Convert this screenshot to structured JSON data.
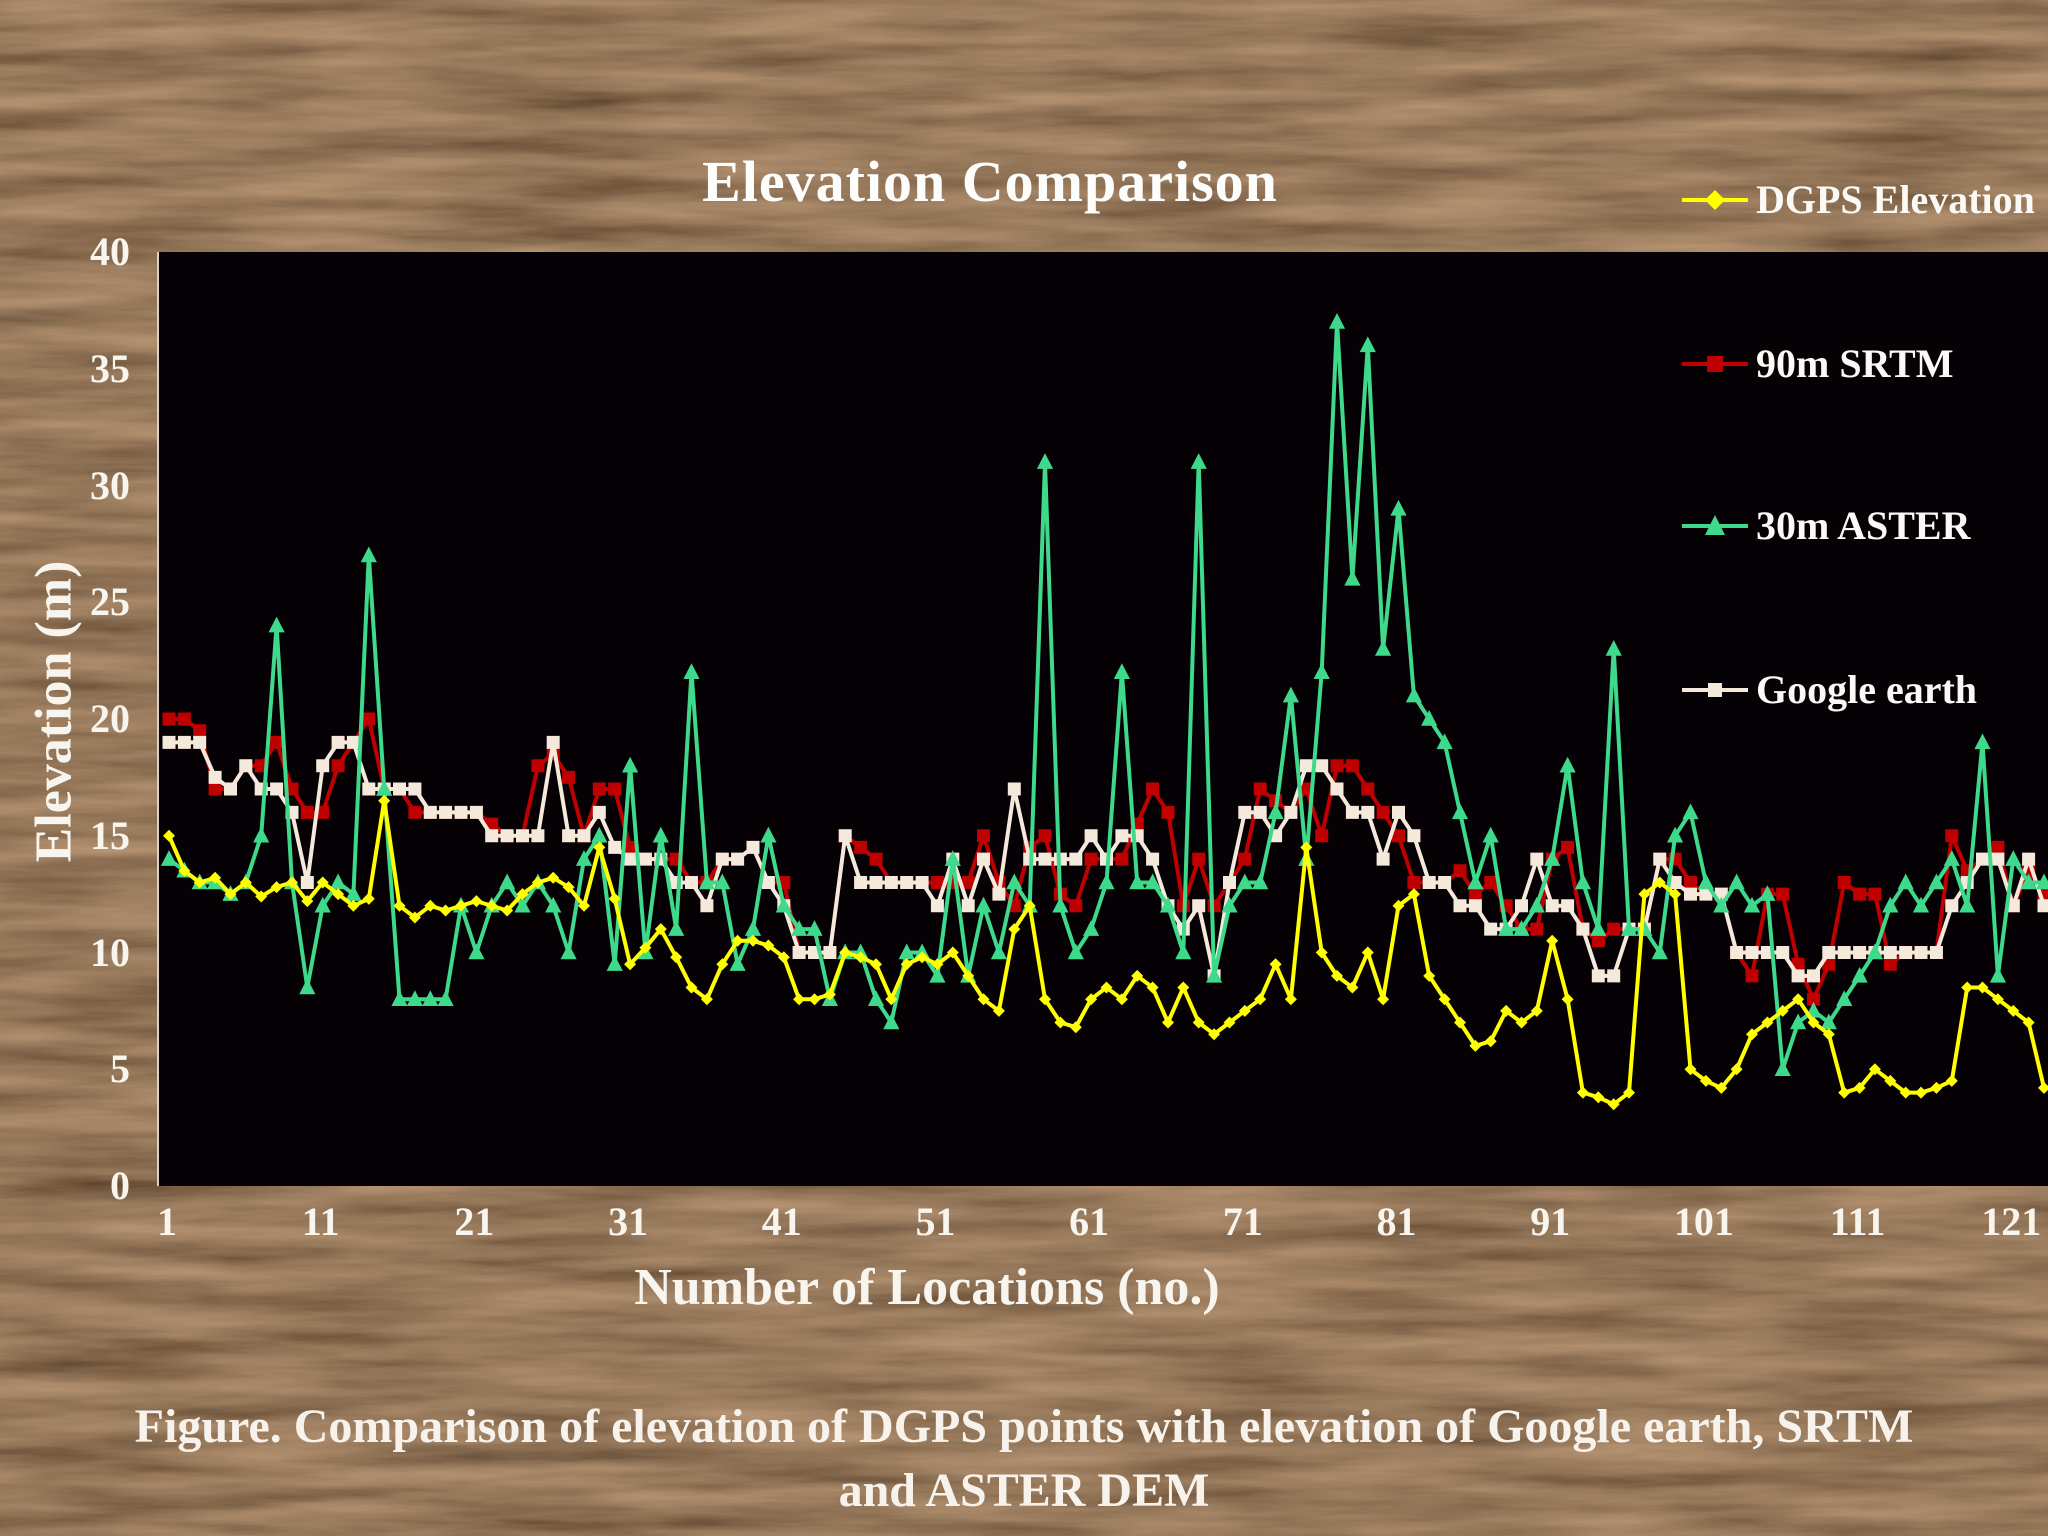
{
  "slide": {
    "caption_line1": "Figure. Comparison of elevation of DGPS points with elevation of Google earth,  SRTM",
    "caption_line2": "and ASTER DEM"
  },
  "colors": {
    "plot_background": "#050105",
    "axis_text": "#f8f5ef",
    "dgps": "#ffff00",
    "srtm": "#c00000",
    "aster": "#3fd98b",
    "google_earth": "#f5e9dc"
  },
  "chart_data": {
    "type": "line",
    "title": "Elevation Comparison",
    "xlabel": "Number of Locations (no.)",
    "ylabel": "Elevation (m)",
    "xlim": [
      1,
      123
    ],
    "ylim": [
      0,
      40
    ],
    "x_ticks": [
      1,
      11,
      21,
      31,
      41,
      51,
      61,
      71,
      81,
      91,
      101,
      111,
      121
    ],
    "y_ticks": [
      0,
      5,
      10,
      15,
      20,
      25,
      30,
      35,
      40
    ],
    "grid": false,
    "legend_position": "right",
    "series": [
      {
        "name": "DGPS Elevation",
        "color": "#ffff00",
        "marker": "diamond",
        "values": [
          15,
          13.5,
          13,
          13.2,
          12.5,
          13,
          12.4,
          12.8,
          13,
          12.2,
          13,
          12.5,
          12,
          12.3,
          16.5,
          12,
          11.5,
          12,
          11.8,
          12,
          12.2,
          12,
          11.8,
          12.5,
          13,
          13.2,
          12.8,
          12,
          14.5,
          12.3,
          9.5,
          10.2,
          11,
          9.8,
          8.5,
          8,
          9.5,
          10.5,
          10.5,
          10.3,
          9.8,
          8,
          8,
          8.2,
          10,
          9.8,
          9.5,
          8,
          9.5,
          9.8,
          9.5,
          10,
          9,
          8,
          7.5,
          11,
          12,
          8,
          7,
          6.8,
          8,
          8.5,
          8,
          9,
          8.5,
          7,
          8.5,
          7,
          6.5,
          7,
          7.5,
          8,
          9.5,
          8,
          14.5,
          10,
          9,
          8.5,
          10,
          8,
          12,
          12.5,
          9,
          8,
          7,
          6,
          6.2,
          7.5,
          7,
          7.5,
          10.5,
          8,
          4,
          3.8,
          3.5,
          4,
          12.5,
          13,
          12.5,
          5,
          4.5,
          4.2,
          5,
          6.5,
          7,
          7.5,
          8,
          7,
          6.5,
          4,
          4.2,
          5,
          4.5,
          4,
          4,
          4.2,
          4.5,
          8.5,
          8.5,
          8,
          7.5,
          7,
          4.2
        ]
      },
      {
        "name": "90m SRTM",
        "color": "#c00000",
        "marker": "square",
        "values": [
          20,
          20,
          19.5,
          17,
          17,
          18,
          18,
          19,
          17,
          16,
          16,
          18,
          19,
          20,
          17,
          17,
          16,
          16,
          16,
          16,
          16,
          15.5,
          15,
          15,
          18,
          18.5,
          17.5,
          15,
          17,
          17,
          14.5,
          14,
          14,
          14,
          13,
          13,
          14,
          14,
          14.5,
          13,
          13,
          10,
          10,
          10,
          15,
          14.5,
          14,
          13,
          13,
          13,
          13,
          13,
          13,
          15,
          13,
          12,
          14.5,
          15,
          12.5,
          12,
          14,
          14,
          14,
          15.5,
          17,
          16,
          12,
          14,
          12,
          13,
          14,
          17,
          16.5,
          16,
          17,
          15,
          18,
          18,
          17,
          16,
          15,
          13,
          13,
          13,
          13.5,
          12.5,
          13,
          12,
          11,
          11,
          14,
          14.5,
          11,
          10.5,
          11,
          11,
          11,
          14,
          14,
          13,
          12.5,
          12.5,
          10,
          9,
          12.5,
          12.5,
          9.5,
          8,
          9.5,
          13,
          12.5,
          12.5,
          9.5,
          10,
          10,
          10,
          15,
          13.5,
          14,
          14.5,
          12,
          13.5,
          12.5
        ]
      },
      {
        "name": "30m ASTER",
        "color": "#3fd98b",
        "marker": "triangle",
        "values": [
          14,
          13.5,
          13,
          13,
          12.5,
          13,
          15,
          24,
          13,
          8.5,
          12,
          13,
          12.5,
          27,
          17,
          8,
          8,
          8,
          8,
          12,
          10,
          12,
          13,
          12,
          13,
          12,
          10,
          14,
          15,
          9.5,
          18,
          10,
          15,
          11,
          22,
          13,
          13,
          9.5,
          11,
          15,
          12,
          11,
          11,
          8,
          10,
          10,
          8,
          7,
          10,
          10,
          9,
          14,
          9,
          12,
          10,
          13,
          12,
          31,
          12,
          10,
          11,
          13,
          22,
          13,
          13,
          12,
          10,
          31,
          9,
          12,
          13,
          13,
          16,
          21,
          14,
          22,
          37,
          26,
          36,
          23,
          29,
          21,
          20,
          19,
          16,
          13,
          15,
          11,
          11,
          12,
          14,
          18,
          13,
          11,
          23,
          11,
          11,
          10,
          15,
          16,
          13,
          12,
          13,
          12,
          12.5,
          5,
          7,
          7.5,
          7,
          8,
          9,
          10,
          12,
          13,
          12,
          13,
          14,
          12,
          19,
          9,
          14,
          13,
          13
        ]
      },
      {
        "name": "Google earth",
        "color": "#f5e9dc",
        "marker": "square",
        "values": [
          19,
          19,
          19,
          17.5,
          17,
          18,
          17,
          17,
          16,
          13,
          18,
          19,
          19,
          17,
          17,
          17,
          17,
          16,
          16,
          16,
          16,
          15,
          15,
          15,
          15,
          19,
          15,
          15,
          16,
          14.5,
          14,
          14,
          14,
          13,
          13,
          12,
          14,
          14,
          14.5,
          13,
          12,
          10,
          10,
          10,
          15,
          13,
          13,
          13,
          13,
          13,
          12,
          14,
          12,
          14,
          12.5,
          17,
          14,
          14,
          14,
          14,
          15,
          14,
          15,
          15,
          14,
          12,
          11,
          12,
          9,
          13,
          16,
          16,
          15,
          16,
          18,
          18,
          17,
          16,
          16,
          14,
          16,
          15,
          13,
          13,
          12,
          12,
          11,
          11,
          12,
          14,
          12,
          12,
          11,
          9,
          9,
          11,
          11,
          14,
          13,
          12.5,
          12.5,
          12.5,
          10,
          10,
          10,
          10,
          9,
          9,
          10,
          10,
          10,
          10,
          10,
          10,
          10,
          10,
          12,
          13,
          14,
          14,
          12,
          14,
          12
        ]
      }
    ]
  }
}
